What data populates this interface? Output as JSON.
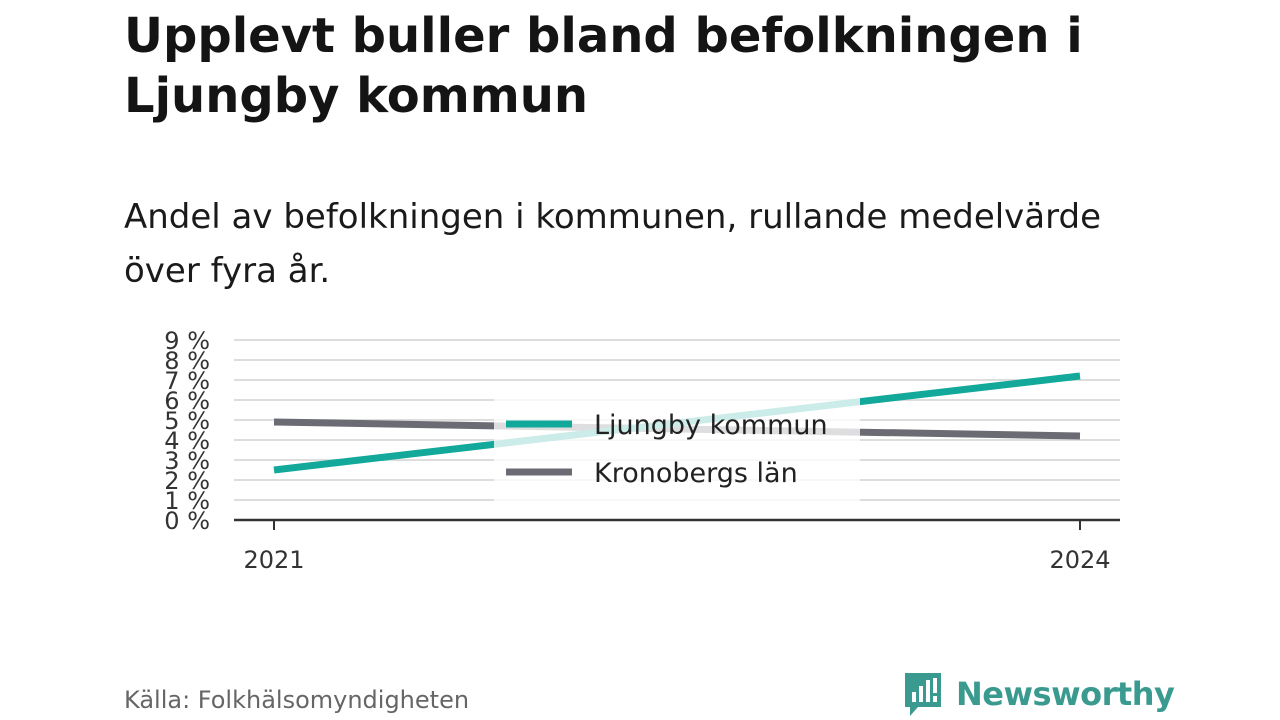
{
  "header": {
    "title": "Upplevt buller bland befolkningen i Ljungby kommun",
    "subtitle": "Andel av befolkningen i kommunen, rullande medelvärde över fyra år."
  },
  "footer": {
    "source": "Källa: Folkhälsomyndigheten",
    "brand": "Newsworthy"
  },
  "colors": {
    "ljungby": "#12a89a",
    "kronoberg": "#6b6b73",
    "grid": "#dddddd",
    "axis": "#333333",
    "brand": "#3a9a90"
  },
  "icons": {
    "brand_logo": "chat-bubble-bar-chart-icon"
  },
  "chart_data": {
    "type": "line",
    "title": "Upplevt buller bland befolkningen i Ljungby kommun",
    "subtitle": "Andel av befolkningen i kommunen, rullande medelvärde över fyra år.",
    "x": [
      "2021",
      "2024"
    ],
    "x_ticks": [
      "2021",
      "2024"
    ],
    "ylim": [
      0,
      9
    ],
    "y_ticks": [
      "0 %",
      "1 %",
      "2 %",
      "3 %",
      "4 %",
      "5 %",
      "6 %",
      "7 %",
      "8 %",
      "9 %"
    ],
    "xlabel": "",
    "ylabel": "",
    "grid": true,
    "legend_position": "center",
    "series": [
      {
        "name": "Ljungby kommun",
        "values": [
          2.5,
          7.2
        ],
        "color": "#12a89a"
      },
      {
        "name": "Kronobergs län",
        "values": [
          4.9,
          4.2
        ],
        "color": "#6b6b73"
      }
    ]
  }
}
